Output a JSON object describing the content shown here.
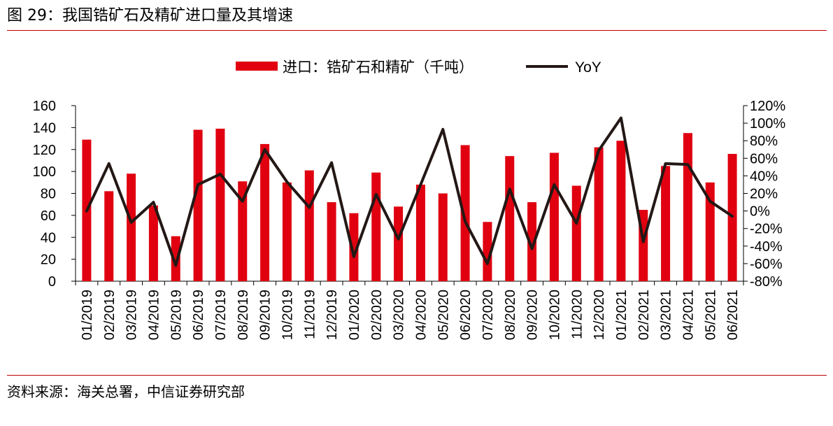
{
  "page": {
    "title": "图 29：我国锆矿石及精矿进口量及其增速",
    "source": "资料来源：海关总署，中信证券研究部"
  },
  "colors": {
    "bar": "#e00010",
    "line": "#231815",
    "rule": "#c00000",
    "axis": "#000000"
  },
  "chart_data": {
    "type": "bar",
    "title": "",
    "categories": [
      "01/2019",
      "02/2019",
      "03/2019",
      "04/2019",
      "05/2019",
      "06/2019",
      "07/2019",
      "08/2019",
      "09/2019",
      "10/2019",
      "11/2019",
      "12/2019",
      "01/2020",
      "02/2020",
      "03/2020",
      "04/2020",
      "05/2020",
      "06/2020",
      "07/2020",
      "08/2020",
      "09/2020",
      "10/2020",
      "11/2020",
      "12/2020",
      "01/2021",
      "02/2021",
      "03/2021",
      "04/2021",
      "05/2021",
      "06/2021"
    ],
    "series": [
      {
        "name": "进口：锆矿石和精矿（千吨）",
        "type": "bar",
        "axis": "left",
        "values": [
          129,
          82,
          98,
          69,
          41,
          138,
          139,
          91,
          125,
          90,
          101,
          72,
          62,
          99,
          68,
          88,
          80,
          124,
          54,
          114,
          72,
          117,
          87,
          122,
          128,
          65,
          105,
          135,
          90,
          116
        ]
      },
      {
        "name": "YoY",
        "type": "line",
        "axis": "right",
        "values": [
          0,
          54,
          -13,
          10,
          -62,
          30,
          42,
          11,
          70,
          33,
          4,
          55,
          -52,
          19,
          -32,
          30,
          93,
          -12,
          -60,
          25,
          -43,
          30,
          -14,
          69,
          106,
          -35,
          54,
          53,
          11,
          -6
        ]
      }
    ],
    "y_left": {
      "ylim": [
        0,
        160
      ],
      "ticks": [
        "0",
        "20",
        "40",
        "60",
        "80",
        "100",
        "120",
        "140",
        "160"
      ]
    },
    "y_right": {
      "ylim": [
        -80,
        120
      ],
      "ticks": [
        "-80%",
        "-60%",
        "-40%",
        "-20%",
        "0%",
        "20%",
        "40%",
        "60%",
        "80%",
        "100%",
        "120%"
      ]
    },
    "xlabel": "",
    "ylabel": "",
    "grid": false,
    "legend_position": "top-center"
  }
}
